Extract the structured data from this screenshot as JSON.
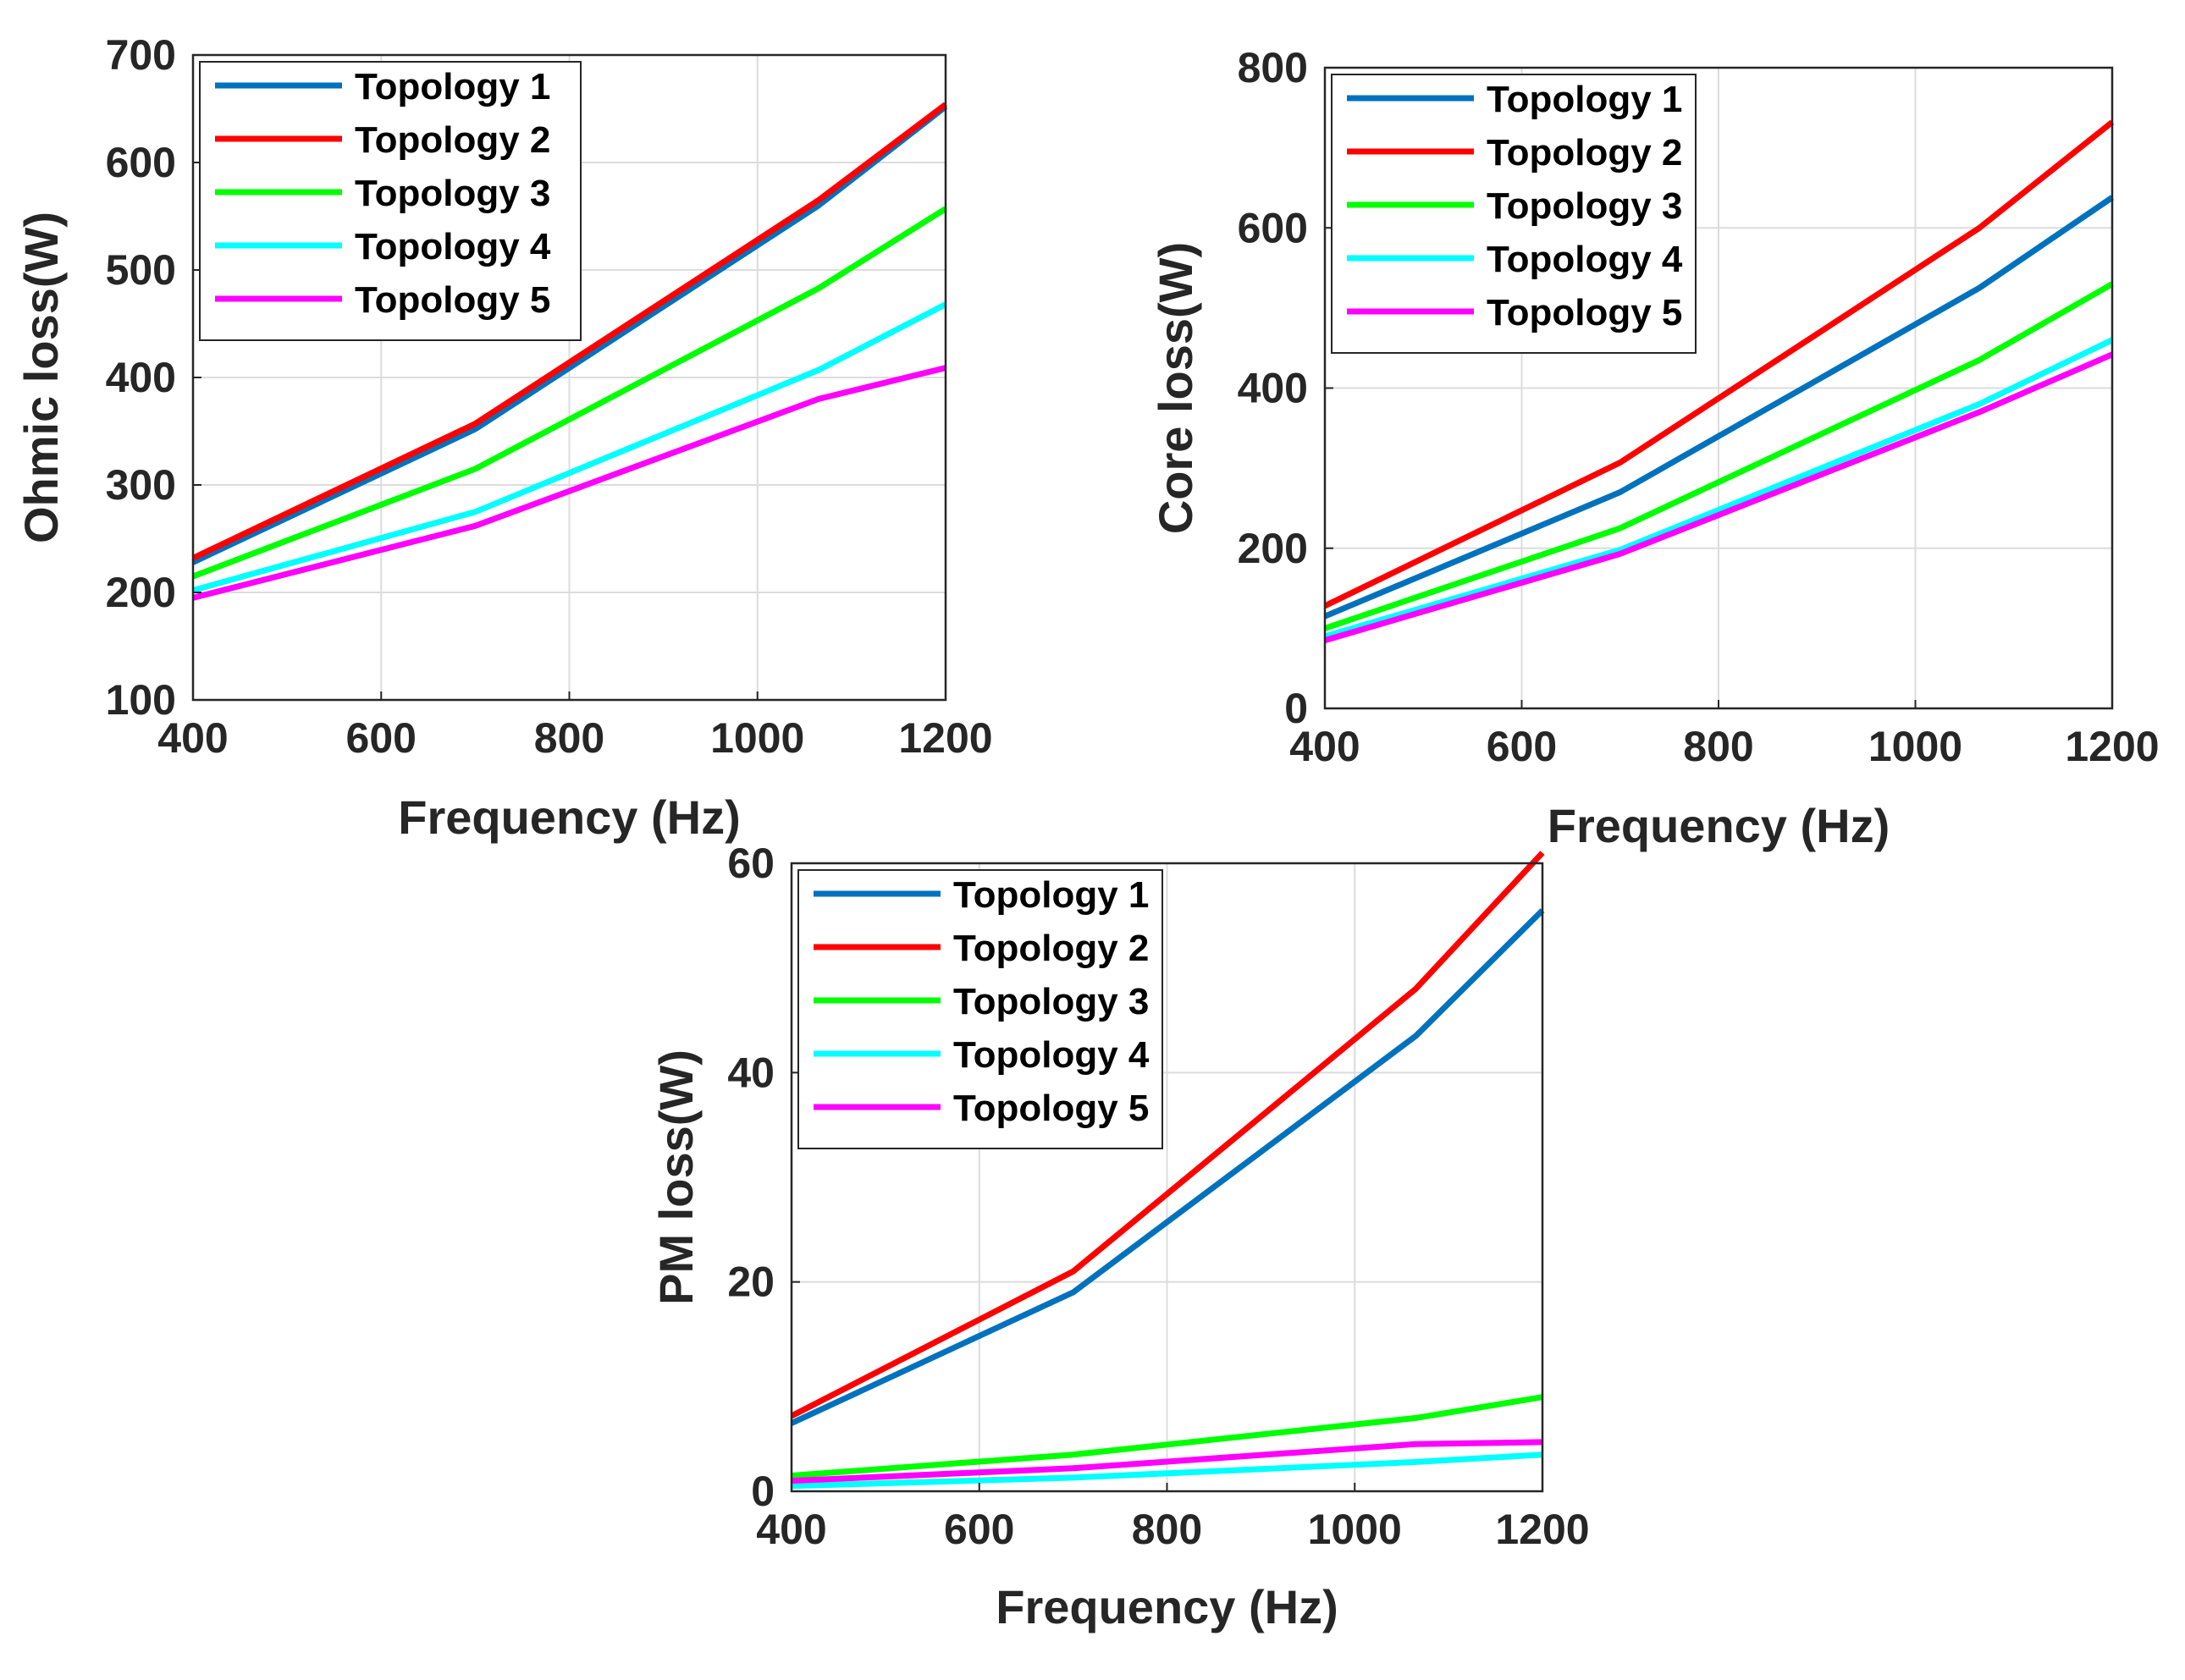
{
  "chart_data": [
    {
      "type": "line",
      "id": "ohmic",
      "title": "",
      "xlabel": "Frequency (Hz)",
      "ylabel": "Ohmic loss(W)",
      "xlim": [
        400,
        1200
      ],
      "ylim": [
        100,
        700
      ],
      "xticks": [
        "400",
        "600",
        "800",
        "1000",
        "1200"
      ],
      "yticks": [
        "100",
        "200",
        "300",
        "400",
        "500",
        "600",
        "700"
      ],
      "grid": true,
      "legend": "top-left",
      "x": [
        400,
        700,
        1065,
        1200
      ],
      "series": [
        {
          "name": "Topology 1",
          "color": "#0072BD",
          "values": [
            228,
            352,
            560,
            652
          ]
        },
        {
          "name": "Topology 2",
          "color": "#FF0000",
          "values": [
            232,
            357,
            565,
            654
          ]
        },
        {
          "name": "Topology 3",
          "color": "#00FF00",
          "values": [
            215,
            315,
            483,
            557
          ]
        },
        {
          "name": "Topology 4",
          "color": "#00FFFF",
          "values": [
            202,
            275,
            407,
            468
          ]
        },
        {
          "name": "Topology 5",
          "color": "#FF00FF",
          "values": [
            195,
            262,
            380,
            409
          ]
        }
      ]
    },
    {
      "type": "line",
      "id": "core",
      "title": "",
      "xlabel": "Frequency (Hz)",
      "ylabel": "Core loss(W)",
      "xlim": [
        400,
        1200
      ],
      "ylim": [
        0,
        800
      ],
      "xticks": [
        "400",
        "600",
        "800",
        "1000",
        "1200"
      ],
      "yticks": [
        "0",
        "200",
        "400",
        "600",
        "800"
      ],
      "grid": true,
      "legend": "top-left",
      "x": [
        400,
        700,
        1065,
        1200
      ],
      "series": [
        {
          "name": "Topology 1",
          "color": "#0072BD",
          "values": [
            115,
            270,
            525,
            638
          ]
        },
        {
          "name": "Topology 2",
          "color": "#FF0000",
          "values": [
            128,
            307,
            600,
            732
          ]
        },
        {
          "name": "Topology 3",
          "color": "#00FF00",
          "values": [
            100,
            225,
            435,
            530
          ]
        },
        {
          "name": "Topology 4",
          "color": "#00FFFF",
          "values": [
            90,
            198,
            380,
            460
          ]
        },
        {
          "name": "Topology 5",
          "color": "#FF00FF",
          "values": [
            85,
            193,
            370,
            442
          ]
        }
      ]
    },
    {
      "type": "line",
      "id": "pm",
      "title": "",
      "xlabel": "Frequency (Hz)",
      "ylabel": "PM loss(W)",
      "xlim": [
        400,
        1200
      ],
      "ylim": [
        0,
        60
      ],
      "xticks": [
        "400",
        "600",
        "800",
        "1000",
        "1200"
      ],
      "yticks": [
        "0",
        "20",
        "40",
        "60"
      ],
      "grid": true,
      "legend": "top-left",
      "x": [
        400,
        700,
        1065,
        1200
      ],
      "series": [
        {
          "name": "Topology 1",
          "color": "#0072BD",
          "values": [
            6.5,
            19,
            43.5,
            55.5
          ]
        },
        {
          "name": "Topology 2",
          "color": "#FF0000",
          "values": [
            7.2,
            21,
            48,
            61
          ]
        },
        {
          "name": "Topology 3",
          "color": "#00FF00",
          "values": [
            1.5,
            3.5,
            7,
            9
          ]
        },
        {
          "name": "Topology 4",
          "color": "#00FFFF",
          "values": [
            0.5,
            1.3,
            2.8,
            3.5
          ]
        },
        {
          "name": "Topology 5",
          "color": "#FF00FF",
          "values": [
            1.0,
            2.2,
            4.5,
            4.7
          ]
        }
      ]
    }
  ]
}
